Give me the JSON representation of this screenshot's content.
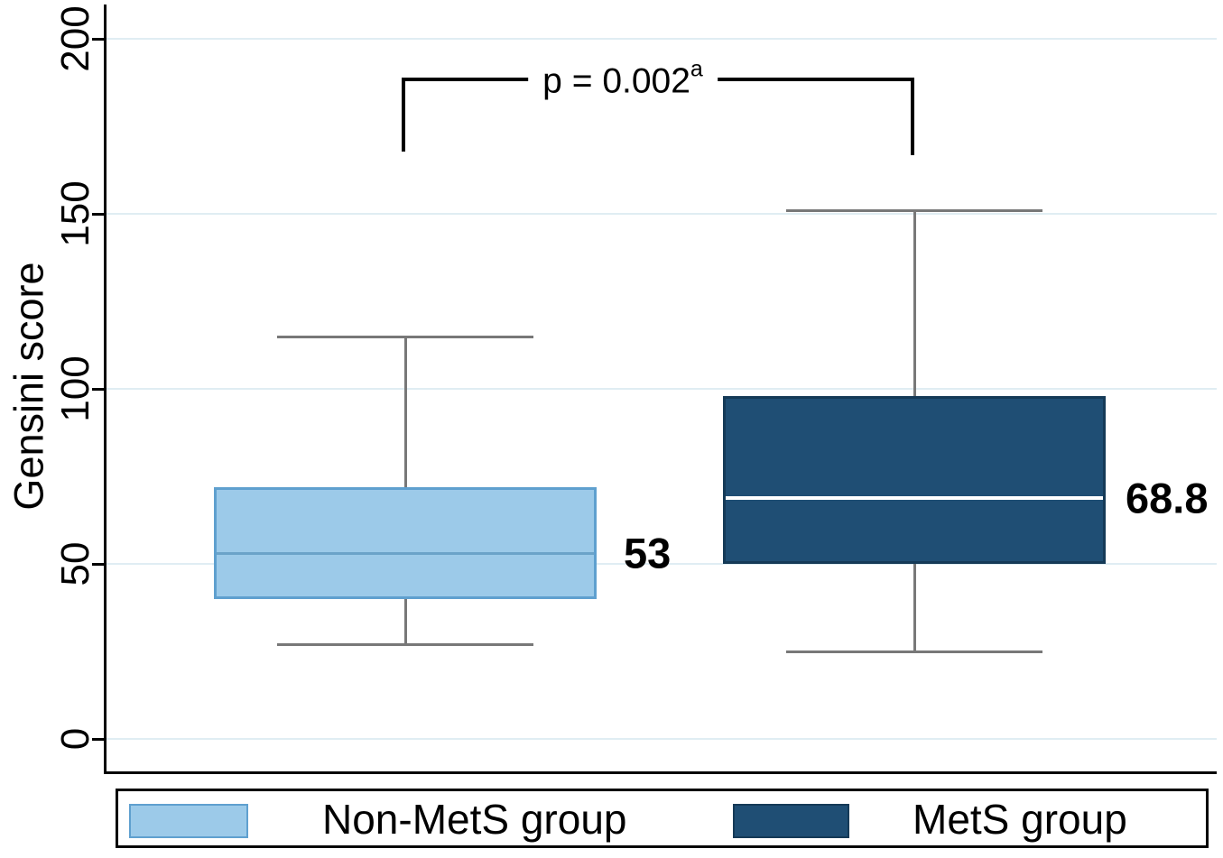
{
  "figure": {
    "ylabel": "Gensini score",
    "y_axis": {
      "tick_labels": [
        "0",
        "50",
        "100",
        "150",
        "200"
      ]
    },
    "annotation": {
      "text": "p = 0.002",
      "superscript": "a"
    },
    "median_labels": [
      "53",
      "68.8"
    ],
    "legend": {
      "items": [
        {
          "label": "Non-MetS group"
        },
        {
          "label": "MetS group"
        }
      ]
    },
    "colors": {
      "non_mets_fill": "#9CCAE9",
      "non_mets_border": "#5FA0CF",
      "non_mets_median": "#6BA3C9",
      "mets_fill": "#1F4E74",
      "mets_border": "#153A57",
      "mets_median": "#FFFFFF",
      "whisker": "#787878",
      "gridline": "#E0EDF3",
      "axis": "#000000"
    }
  },
  "chart_data": {
    "type": "boxplot",
    "title": "",
    "xlabel": "",
    "ylabel": "Gensini score",
    "ylim": [
      0,
      210
    ],
    "yticks": [
      0,
      50,
      100,
      150,
      200
    ],
    "grid": "horizontal",
    "legend_position": "bottom",
    "annotation": "p = 0.002ᵃ (comparison bracket between the two groups)",
    "groups": [
      {
        "name": "Non-MetS group",
        "whisker_low": 27,
        "q1": 40,
        "median": 53,
        "q3": 72,
        "whisker_high": 115,
        "median_label": "53"
      },
      {
        "name": "MetS group",
        "whisker_low": 25,
        "q1": 50,
        "median": 68.8,
        "q3": 98,
        "whisker_high": 151,
        "median_label": "68.8"
      }
    ]
  }
}
